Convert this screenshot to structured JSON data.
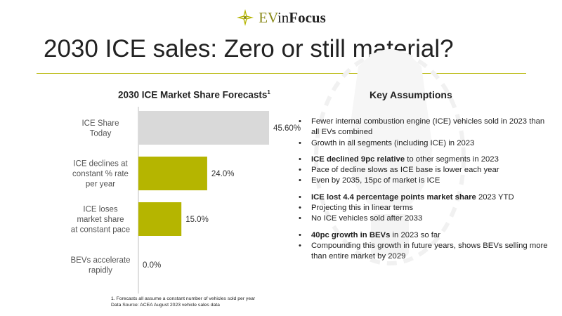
{
  "brand": {
    "ev": "EV",
    "in": "in",
    "focus": "Focus",
    "accent": "#b5b500"
  },
  "title": "2030 ICE sales: Zero or still material?",
  "chart_title": "2030 ICE Market Share Forecasts",
  "chart_title_sup": "1",
  "chart_data": {
    "type": "bar",
    "orientation": "horizontal",
    "title": "2030 ICE Market Share Forecasts",
    "categories": [
      [
        "ICE Share",
        "Today"
      ],
      [
        "ICE declines at",
        "constant % rate",
        "per year"
      ],
      [
        "ICE loses",
        "market share",
        "at constant pace"
      ],
      [
        "BEVs accelerate",
        "rapidly"
      ]
    ],
    "values": [
      45.6,
      24.0,
      15.0,
      0.0
    ],
    "value_labels": [
      "45.60%",
      "24.0%",
      "15.0%",
      "0.0%"
    ],
    "colors": [
      "#d9d9d9",
      "#b5b500",
      "#b5b500",
      "#b5b500"
    ],
    "xlim": [
      0,
      50
    ],
    "grid": false
  },
  "assumptions_title": "Key Assumptions",
  "assumptions": [
    [
      [
        {
          "t": "Fewer internal combustion engine (ICE) vehicles sold in 2023 than all EVs combined",
          "b": false
        }
      ],
      [
        {
          "t": "Growth in all segments (including ICE) in 2023",
          "b": false
        }
      ]
    ],
    [
      [
        {
          "t": "ICE declined 9pc relative",
          "b": true
        },
        {
          "t": " to other segments in 2023",
          "b": false
        }
      ],
      [
        {
          "t": "Pace of decline slows as ICE base is lower each year",
          "b": false
        }
      ],
      [
        {
          "t": "Even by 2035, 15pc of market is ICE",
          "b": false
        }
      ]
    ],
    [
      [
        {
          "t": "ICE lost 4.4 percentage points market share",
          "b": true
        },
        {
          "t": " 2023 YTD",
          "b": false
        }
      ],
      [
        {
          "t": "Projecting this in linear terms",
          "b": false
        }
      ],
      [
        {
          "t": "No ICE vehicles sold after 2033",
          "b": false
        }
      ]
    ],
    [
      [
        {
          "t": "40pc growth in BEVs",
          "b": true
        },
        {
          "t": " in 2023 so far",
          "b": false
        }
      ],
      [
        {
          "t": "Compounding this growth in future years, shows BEVs selling more than entire market by 2029",
          "b": false
        }
      ]
    ]
  ],
  "footnotes": [
    "1. Forecasts all assume a constant number of vehicles sold per year",
    "Data Source: ACEA August 2023 vehicle sales data"
  ]
}
